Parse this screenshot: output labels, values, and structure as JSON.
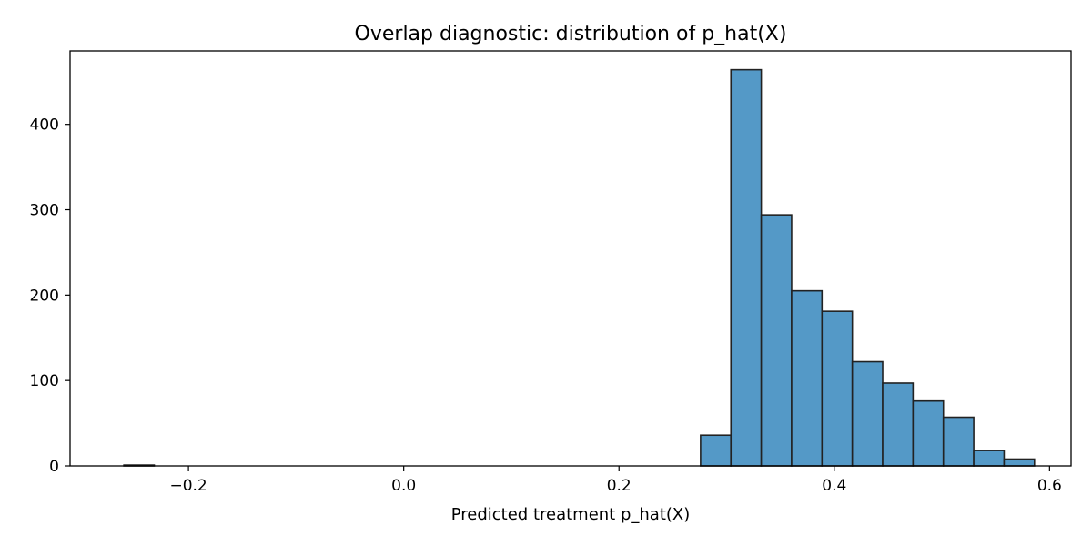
{
  "chart_data": {
    "type": "bar",
    "title": "Overlap diagnostic: distribution of p_hat(X)",
    "xlabel": "Predicted treatment p_hat(X)",
    "ylabel": "",
    "xlim": [
      -0.31,
      0.62
    ],
    "ylim": [
      0,
      486
    ],
    "xticks": [
      -0.2,
      0.0,
      0.2,
      0.4,
      0.6
    ],
    "xtick_labels": [
      "−0.2",
      "0.0",
      "0.2",
      "0.4",
      "0.6"
    ],
    "yticks": [
      0,
      100,
      200,
      300,
      400
    ],
    "ytick_labels": [
      "0",
      "100",
      "200",
      "300",
      "400"
    ],
    "bin_edges": [
      -0.26,
      -0.2318,
      -0.2036,
      -0.1754,
      -0.1472,
      -0.119,
      -0.0908,
      -0.0626,
      -0.0344,
      -0.0062,
      0.022,
      0.0502,
      0.0784,
      0.1066,
      0.1348,
      0.163,
      0.1912,
      0.2194,
      0.2476,
      0.2758,
      0.304,
      0.3322,
      0.3604,
      0.3886,
      0.4168,
      0.445,
      0.4732,
      0.5014,
      0.5296,
      0.5578,
      0.586
    ],
    "counts": [
      1,
      0,
      0,
      0,
      0,
      0,
      0,
      0,
      0,
      0,
      0,
      0,
      0,
      0,
      0,
      0,
      0,
      0,
      0,
      36,
      464,
      294,
      205,
      181,
      122,
      97,
      76,
      57,
      18,
      8
    ],
    "bar_color": "#5499c7",
    "edge_color": "#222222",
    "grid": false,
    "legend": "none"
  }
}
